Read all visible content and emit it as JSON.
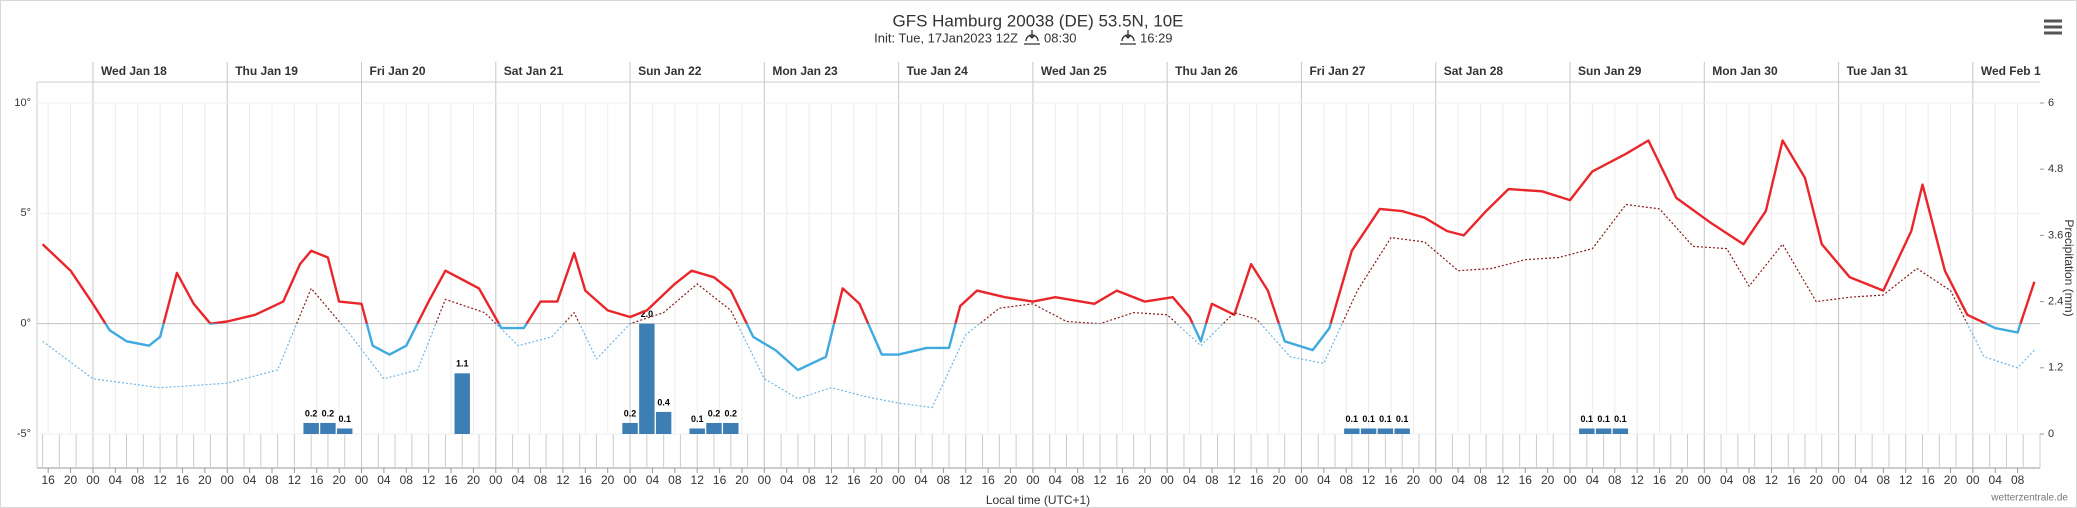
{
  "chart_data": {
    "type": "line",
    "title": "GFS Hamburg 20038 (DE) 53.5N, 10E",
    "subtitle": {
      "init": "Init: Tue, 17Jan2023 12Z",
      "sunrise": "08:30",
      "sunset": "16:29"
    },
    "x_title": "Local time (UTC+1)",
    "y2_title": "Precipitation (mm)",
    "credit": "wetterzentrale.de",
    "xlim": [
      14,
      372
    ],
    "xticks": [
      16,
      20,
      {
        "value": 24,
        "label": "00"
      },
      {
        "value": 28,
        "label": "04"
      },
      {
        "value": 32,
        "label": "08"
      },
      {
        "value": 36,
        "label": "12"
      },
      {
        "value": 40,
        "label": "16"
      },
      {
        "value": 44,
        "label": "20"
      },
      {
        "value": 48,
        "label": "00"
      },
      {
        "value": 52,
        "label": "04"
      },
      {
        "value": 56,
        "label": "08"
      },
      {
        "value": 60,
        "label": "12"
      },
      {
        "value": 64,
        "label": "16"
      },
      {
        "value": 68,
        "label": "20"
      },
      {
        "value": 72,
        "label": "00"
      },
      {
        "value": 76,
        "label": "04"
      },
      {
        "value": 80,
        "label": "08"
      },
      {
        "value": 84,
        "label": "12"
      },
      {
        "value": 88,
        "label": "16"
      },
      {
        "value": 92,
        "label": "20"
      },
      {
        "value": 96,
        "label": "00"
      },
      {
        "value": 100,
        "label": "04"
      },
      {
        "value": 104,
        "label": "08"
      },
      {
        "value": 108,
        "label": "12"
      },
      {
        "value": 112,
        "label": "16"
      },
      {
        "value": 116,
        "label": "20"
      },
      {
        "value": 120,
        "label": "00"
      },
      {
        "value": 124,
        "label": "04"
      },
      {
        "value": 128,
        "label": "08"
      },
      {
        "value": 132,
        "label": "12"
      },
      {
        "value": 136,
        "label": "16"
      },
      {
        "value": 140,
        "label": "20"
      },
      {
        "value": 144,
        "label": "00"
      },
      {
        "value": 148,
        "label": "04"
      },
      {
        "value": 152,
        "label": "08"
      },
      {
        "value": 156,
        "label": "12"
      },
      {
        "value": 160,
        "label": "16"
      },
      {
        "value": 164,
        "label": "20"
      },
      {
        "value": 168,
        "label": "00"
      },
      {
        "value": 172,
        "label": "04"
      },
      {
        "value": 176,
        "label": "08"
      },
      {
        "value": 180,
        "label": "12"
      },
      {
        "value": 184,
        "label": "16"
      },
      {
        "value": 188,
        "label": "20"
      },
      {
        "value": 192,
        "label": "00"
      },
      {
        "value": 196,
        "label": "04"
      },
      {
        "value": 200,
        "label": "08"
      },
      {
        "value": 204,
        "label": "12"
      },
      {
        "value": 208,
        "label": "16"
      },
      {
        "value": 212,
        "label": "20"
      },
      {
        "value": 216,
        "label": "00"
      },
      {
        "value": 220,
        "label": "04"
      },
      {
        "value": 224,
        "label": "08"
      },
      {
        "value": 228,
        "label": "12"
      },
      {
        "value": 232,
        "label": "16"
      },
      {
        "value": 236,
        "label": "20"
      },
      {
        "value": 240,
        "label": "00"
      },
      {
        "value": 244,
        "label": "04"
      },
      {
        "value": 248,
        "label": "08"
      },
      {
        "value": 252,
        "label": "12"
      },
      {
        "value": 256,
        "label": "16"
      },
      {
        "value": 260,
        "label": "20"
      },
      {
        "value": 264,
        "label": "00"
      },
      {
        "value": 268,
        "label": "04"
      },
      {
        "value": 272,
        "label": "08"
      },
      {
        "value": 276,
        "label": "12"
      },
      {
        "value": 280,
        "label": "16"
      },
      {
        "value": 284,
        "label": "20"
      },
      {
        "value": 288,
        "label": "00"
      },
      {
        "value": 292,
        "label": "04"
      },
      {
        "value": 296,
        "label": "08"
      },
      {
        "value": 300,
        "label": "12"
      },
      {
        "value": 304,
        "label": "16"
      },
      {
        "value": 308,
        "label": "20"
      },
      {
        "value": 312,
        "label": "00"
      },
      {
        "value": 316,
        "label": "04"
      },
      {
        "value": 320,
        "label": "08"
      },
      {
        "value": 324,
        "label": "12"
      },
      {
        "value": 328,
        "label": "16"
      },
      {
        "value": 332,
        "label": "20"
      },
      {
        "value": 336,
        "label": "00"
      },
      {
        "value": 340,
        "label": "04"
      },
      {
        "value": 344,
        "label": "08"
      },
      {
        "value": 348,
        "label": "12"
      },
      {
        "value": 352,
        "label": "16"
      },
      {
        "value": 356,
        "label": "20"
      },
      {
        "value": 360,
        "label": "00"
      },
      {
        "value": 364,
        "label": "04"
      },
      {
        "value": 368,
        "label": "08"
      }
    ],
    "day_ticks": [
      {
        "value": 24,
        "label": "Wed Jan 18"
      },
      {
        "value": 48,
        "label": "Thu Jan 19"
      },
      {
        "value": 72,
        "label": "Fri Jan 20"
      },
      {
        "value": 96,
        "label": "Sat Jan 21"
      },
      {
        "value": 120,
        "label": "Sun Jan 22"
      },
      {
        "value": 144,
        "label": "Mon Jan 23"
      },
      {
        "value": 168,
        "label": "Tue Jan 24"
      },
      {
        "value": 192,
        "label": "Wed Jan 25"
      },
      {
        "value": 216,
        "label": "Thu Jan 26"
      },
      {
        "value": 240,
        "label": "Fri Jan 27"
      },
      {
        "value": 264,
        "label": "Sat Jan 28"
      },
      {
        "value": 288,
        "label": "Sun Jan 29"
      },
      {
        "value": 312,
        "label": "Mon Jan 30"
      },
      {
        "value": 336,
        "label": "Tue Jan 31"
      },
      {
        "value": 360,
        "label": "Wed Feb 1"
      }
    ],
    "ylim": [
      -5,
      10
    ],
    "yticks": [
      {
        "value": 10,
        "label": "10°"
      },
      {
        "value": 5,
        "label": "5°"
      },
      {
        "value": 0,
        "label": "0°"
      },
      {
        "value": -5,
        "label": "-5°"
      }
    ],
    "y2lim": [
      0,
      6
    ],
    "y2ticks": [
      0,
      1.2,
      2.4,
      3.6,
      4.8,
      6
    ],
    "threshold": 0,
    "series": [
      {
        "type": "line",
        "color": "#e8262b",
        "negative_color": "#3fa9e0",
        "dash": false,
        "x": [
          15,
          20,
          24,
          27,
          30,
          34,
          36,
          39,
          42,
          45,
          48,
          53,
          58,
          61,
          63,
          66,
          68,
          72,
          74,
          77,
          80,
          84,
          87,
          90,
          93,
          97,
          101,
          104,
          107,
          110,
          112,
          116,
          120,
          123,
          128,
          131,
          135,
          138,
          142,
          146,
          150,
          155,
          158,
          161,
          165,
          168,
          173,
          177,
          179,
          182,
          187,
          192,
          196,
          203,
          207,
          212,
          217,
          220,
          222,
          224,
          228,
          231,
          234,
          237,
          242,
          245,
          249,
          254,
          258,
          262,
          266,
          269,
          273,
          277,
          283,
          288,
          292,
          298,
          302,
          307,
          313,
          319,
          323,
          326,
          330,
          333,
          338,
          344,
          349,
          351,
          355,
          359,
          364,
          368,
          371
        ],
        "values": [
          3.6,
          2.4,
          0.9,
          -0.3,
          -0.8,
          -1.0,
          -0.6,
          2.3,
          0.9,
          0,
          0.1,
          0.4,
          1.0,
          2.7,
          3.3,
          3.0,
          1.0,
          0.9,
          -1.0,
          -1.4,
          -1.0,
          1.0,
          2.4,
          2.0,
          1.6,
          -0.2,
          -0.2,
          1.0,
          1.0,
          3.2,
          1.5,
          0.6,
          0.3,
          0.6,
          1.8,
          2.4,
          2.1,
          1.5,
          -0.6,
          -1.2,
          -2.1,
          -1.5,
          1.6,
          0.9,
          -1.4,
          -1.4,
          -1.1,
          -1.1,
          0.8,
          1.5,
          1.2,
          1.0,
          1.2,
          0.9,
          1.5,
          1.0,
          1.2,
          0.3,
          -0.8,
          0.9,
          0.4,
          2.7,
          1.5,
          -0.8,
          -1.2,
          -0.2,
          3.3,
          5.2,
          5.1,
          4.8,
          4.2,
          4.0,
          5.1,
          6.1,
          6.0,
          5.6,
          6.9,
          7.7,
          8.3,
          5.7,
          4.6,
          3.6,
          5.1,
          8.3,
          6.6,
          3.6,
          2.1,
          1.5,
          4.2,
          6.3,
          2.4,
          0.4,
          -0.2,
          -0.4,
          1.9
        ]
      },
      {
        "type": "line",
        "color": "#8b1a1a",
        "negative_color": "#6fb6e6",
        "dash": true,
        "x": [
          15,
          24,
          36,
          42,
          48,
          57,
          63,
          70,
          76,
          82,
          87,
          94,
          100,
          106,
          110,
          114,
          120,
          126,
          132,
          138,
          144,
          150,
          156,
          162,
          168,
          174,
          180,
          186,
          192,
          198,
          204,
          210,
          216,
          222,
          228,
          232,
          238,
          244,
          250,
          256,
          262,
          268,
          274,
          280,
          286,
          292,
          298,
          304,
          310,
          316,
          320,
          326,
          332,
          338,
          344,
          350,
          356,
          362,
          368,
          371
        ],
        "values": [
          -0.8,
          -2.5,
          -2.9,
          -2.8,
          -2.7,
          -2.1,
          1.6,
          -0.5,
          -2.5,
          -2.1,
          1.1,
          0.5,
          -1.0,
          -0.6,
          0.5,
          -1.6,
          0,
          0.5,
          1.8,
          0.6,
          -2.5,
          -3.4,
          -2.9,
          -3.3,
          -3.6,
          -3.8,
          -0.5,
          0.7,
          0.9,
          0.1,
          0,
          0.5,
          0.4,
          -1.0,
          0.5,
          0.2,
          -1.5,
          -1.8,
          1.5,
          3.9,
          3.7,
          2.4,
          2.5,
          2.9,
          3.0,
          3.4,
          5.4,
          5.2,
          3.5,
          3.4,
          1.7,
          3.6,
          1.0,
          1.2,
          1.3,
          2.5,
          1.5,
          -1.5,
          -2.0,
          -1.2
        ]
      },
      {
        "type": "bar",
        "axis": "y2",
        "color": "#3d7fb4",
        "x": [
          63,
          66,
          69,
          90,
          120,
          123,
          126,
          132,
          135,
          138,
          249,
          252,
          255,
          258,
          291,
          294,
          297
        ],
        "values": [
          0.2,
          0.2,
          0.1,
          1.1,
          0.2,
          2.0,
          0.4,
          0.1,
          0.2,
          0.2,
          0.1,
          0.1,
          0.1,
          0.1,
          0.1,
          0.1,
          0.1
        ],
        "value_labels": [
          "0.2",
          "0.2",
          "0.1",
          "1.1",
          "0.2",
          "2.0",
          "0.4",
          "0.1",
          "0.2",
          "0.2",
          "0.1",
          "0.1",
          "0.1",
          "0.1",
          "0.1",
          "0.1",
          "0.1"
        ]
      }
    ]
  }
}
